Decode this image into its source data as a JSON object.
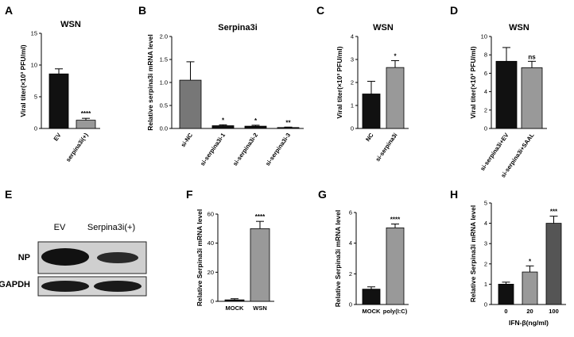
{
  "panels": [
    {
      "letter": "A",
      "title": "WSN",
      "ylabel": "Viral titer(×10³ PFU/ml)",
      "yticks": [
        "0",
        "5",
        "10",
        "15"
      ],
      "categories": [
        "EV",
        "serpina3i(+)"
      ],
      "values": [
        8.6,
        1.3
      ],
      "errors": [
        0.8,
        0.3
      ],
      "colors": [
        "#111111",
        "#999999"
      ],
      "sig": [
        "",
        "****"
      ]
    },
    {
      "letter": "B",
      "title": "Serpina3i",
      "ylabel": "Relative serpina3i mRNA level",
      "yticks": [
        "0.0",
        "0.5",
        "1.0",
        "1.5",
        "2.0"
      ],
      "categories": [
        "si-NC",
        "si-serpina3i-1",
        "si-serpina3i-2",
        "si-serpina3i-3"
      ],
      "values": [
        1.05,
        0.06,
        0.05,
        0.02
      ],
      "errors": [
        0.4,
        0.02,
        0.02,
        0.01
      ],
      "colors": [
        "#777777",
        "#111111",
        "#111111",
        "#111111"
      ],
      "sig": [
        "",
        "*",
        "*",
        "**"
      ]
    },
    {
      "letter": "C",
      "title": "WSN",
      "ylabel": "Viral titer(×10³ PFU/ml)",
      "yticks": [
        "0",
        "1",
        "2",
        "3",
        "4"
      ],
      "categories": [
        "NC",
        "si-serpina3i"
      ],
      "values": [
        1.5,
        2.65
      ],
      "errors": [
        0.55,
        0.3
      ],
      "colors": [
        "#111111",
        "#999999"
      ],
      "sig": [
        "",
        "*"
      ]
    },
    {
      "letter": "D",
      "title": "WSN",
      "ylabel": "Viral titer(×10³ PFU/ml)",
      "yticks": [
        "0",
        "2",
        "4",
        "6",
        "8",
        "10"
      ],
      "categories": [
        "si-serpina3i+EV",
        "si-serpina3i+SAAL"
      ],
      "values": [
        7.3,
        6.6
      ],
      "errors": [
        1.5,
        0.7
      ],
      "colors": [
        "#111111",
        "#999999"
      ],
      "sig": [
        "",
        "ns"
      ]
    },
    {
      "letter": "F",
      "title": "",
      "ylabel": "Relative Serpina3i mRNA level",
      "yticks": [
        "0",
        "20",
        "40",
        "60"
      ],
      "categories": [
        "MOCK",
        "WSN"
      ],
      "values": [
        1,
        50
      ],
      "errors": [
        0.8,
        5
      ],
      "colors": [
        "#111111",
        "#999999"
      ],
      "sig": [
        "",
        "****"
      ]
    },
    {
      "letter": "G",
      "title": "",
      "ylabel": "Relative Serpina3i mRNA level",
      "yticks": [
        "0",
        "2",
        "4",
        "6"
      ],
      "categories": [
        "MOCK",
        "poly(I:C)"
      ],
      "values": [
        1,
        5.0
      ],
      "errors": [
        0.15,
        0.25
      ],
      "colors": [
        "#111111",
        "#999999"
      ],
      "sig": [
        "",
        "****"
      ]
    },
    {
      "letter": "H",
      "title": "",
      "ylabel": "Relative Serpina3i mRNA level",
      "xlabel": "IFN-β(ng/ml)",
      "yticks": [
        "0",
        "1",
        "2",
        "3",
        "4",
        "5"
      ],
      "categories": [
        "0",
        "20",
        "100"
      ],
      "values": [
        1.0,
        1.6,
        4.0
      ],
      "errors": [
        0.1,
        0.3,
        0.35
      ],
      "colors": [
        "#111111",
        "#999999",
        "#555555"
      ],
      "sig": [
        "",
        "*",
        "***"
      ]
    }
  ],
  "blot": {
    "letter": "E",
    "lanes": [
      "EV",
      "Serpina3i(+)"
    ],
    "rows": [
      "NP",
      "GAPDH"
    ]
  },
  "chart_data": [
    {
      "panel": "A",
      "type": "bar",
      "title": "WSN",
      "ylabel": "Viral titer(×10³ PFU/ml)",
      "categories": [
        "EV",
        "serpina3i(+)"
      ],
      "values": [
        8.6,
        1.3
      ],
      "ylim": [
        0,
        15
      ],
      "annotations": [
        "",
        "****"
      ]
    },
    {
      "panel": "B",
      "type": "bar",
      "title": "Serpina3i",
      "ylabel": "Relative serpina3i mRNA level",
      "categories": [
        "si-NC",
        "si-serpina3i-1",
        "si-serpina3i-2",
        "si-serpina3i-3"
      ],
      "values": [
        1.05,
        0.06,
        0.05,
        0.02
      ],
      "ylim": [
        0,
        2.0
      ],
      "annotations": [
        "",
        "*",
        "*",
        "**"
      ]
    },
    {
      "panel": "C",
      "type": "bar",
      "title": "WSN",
      "ylabel": "Viral titer(×10³ PFU/ml)",
      "categories": [
        "NC",
        "si-serpina3i"
      ],
      "values": [
        1.5,
        2.65
      ],
      "ylim": [
        0,
        4
      ],
      "annotations": [
        "",
        "*"
      ]
    },
    {
      "panel": "D",
      "type": "bar",
      "title": "WSN",
      "ylabel": "Viral titer(×10³ PFU/ml)",
      "categories": [
        "si-serpina3i+EV",
        "si-serpina3i+SAAL"
      ],
      "values": [
        7.3,
        6.6
      ],
      "ylim": [
        0,
        10
      ],
      "annotations": [
        "",
        "ns"
      ]
    },
    {
      "panel": "F",
      "type": "bar",
      "ylabel": "Relative Serpina3i mRNA level",
      "categories": [
        "MOCK",
        "WSN"
      ],
      "values": [
        1,
        50
      ],
      "ylim": [
        0,
        60
      ],
      "annotations": [
        "",
        "****"
      ]
    },
    {
      "panel": "G",
      "type": "bar",
      "ylabel": "Relative Serpina3i mRNA level",
      "categories": [
        "MOCK",
        "poly(I:C)"
      ],
      "values": [
        1,
        5.0
      ],
      "ylim": [
        0,
        6
      ],
      "annotations": [
        "",
        "****"
      ]
    },
    {
      "panel": "H",
      "type": "bar",
      "ylabel": "Relative Serpina3i mRNA level",
      "xlabel": "IFN-β(ng/ml)",
      "categories": [
        "0",
        "20",
        "100"
      ],
      "values": [
        1.0,
        1.6,
        4.0
      ],
      "ylim": [
        0,
        5
      ],
      "annotations": [
        "",
        "*",
        "***"
      ]
    }
  ]
}
